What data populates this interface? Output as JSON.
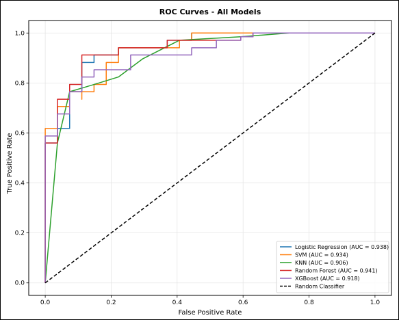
{
  "chart_data": {
    "type": "line",
    "title": "ROC Curves - All Models",
    "xlabel": "False Positive Rate",
    "ylabel": "True Positive Rate",
    "xlim": [
      -0.05,
      1.05
    ],
    "ylim": [
      -0.05,
      1.05
    ],
    "x_ticks": [
      "0.0",
      "0.2",
      "0.4",
      "0.6",
      "0.8",
      "1.0"
    ],
    "y_ticks": [
      "0.0",
      "0.2",
      "0.4",
      "0.6",
      "0.8",
      "1.0"
    ],
    "grid": true,
    "legend_position": "lower-right",
    "series": [
      {
        "name": "Logistic Regression (AUC = 0.938)",
        "color": "#1f77b4",
        "points": [
          [
            0,
            0
          ],
          [
            0,
            0.56
          ],
          [
            0.037,
            0.56
          ],
          [
            0.037,
            0.618
          ],
          [
            0.074,
            0.618
          ],
          [
            0.074,
            0.765
          ],
          [
            0.111,
            0.765
          ],
          [
            0.111,
            0.882
          ],
          [
            0.148,
            0.882
          ],
          [
            0.148,
            0.912
          ],
          [
            0.222,
            0.912
          ],
          [
            0.222,
            0.941
          ],
          [
            0.37,
            0.941
          ],
          [
            0.37,
            0.971
          ],
          [
            0.444,
            0.971
          ],
          [
            0.444,
            1.0
          ],
          [
            1.0,
            1.0
          ]
        ]
      },
      {
        "name": "SVM (AUC = 0.934)",
        "color": "#ff7f0e",
        "points": [
          [
            0,
            0
          ],
          [
            0,
            0.618
          ],
          [
            0.037,
            0.618
          ],
          [
            0.037,
            0.706
          ],
          [
            0.074,
            0.706
          ],
          [
            0.074,
            0.765
          ],
          [
            0.111,
            0.765
          ],
          [
            0.111,
            0.735
          ],
          [
            0.111,
            0.765
          ],
          [
            0.148,
            0.765
          ],
          [
            0.148,
            0.794
          ],
          [
            0.185,
            0.794
          ],
          [
            0.185,
            0.882
          ],
          [
            0.222,
            0.882
          ],
          [
            0.222,
            0.941
          ],
          [
            0.407,
            0.941
          ],
          [
            0.407,
            0.971
          ],
          [
            0.444,
            0.971
          ],
          [
            0.444,
            1.0
          ],
          [
            1.0,
            1.0
          ]
        ]
      },
      {
        "name": "KNN (AUC = 0.906)",
        "color": "#2ca02c",
        "points": [
          [
            0,
            0
          ],
          [
            0.037,
            0.56
          ],
          [
            0.074,
            0.765
          ],
          [
            0.148,
            0.794
          ],
          [
            0.222,
            0.824
          ],
          [
            0.296,
            0.897
          ],
          [
            0.407,
            0.971
          ],
          [
            0.593,
            0.985
          ],
          [
            0.741,
            1.0
          ],
          [
            1.0,
            1.0
          ]
        ]
      },
      {
        "name": "Random Forest (AUC = 0.941)",
        "color": "#d62728",
        "points": [
          [
            0,
            0
          ],
          [
            0,
            0.56
          ],
          [
            0.037,
            0.56
          ],
          [
            0.037,
            0.735
          ],
          [
            0.074,
            0.735
          ],
          [
            0.074,
            0.794
          ],
          [
            0.111,
            0.794
          ],
          [
            0.111,
            0.912
          ],
          [
            0.222,
            0.912
          ],
          [
            0.222,
            0.941
          ],
          [
            0.37,
            0.941
          ],
          [
            0.37,
            0.971
          ],
          [
            0.593,
            0.971
          ],
          [
            0.593,
            0.985
          ],
          [
            0.63,
            0.985
          ],
          [
            0.63,
            1.0
          ],
          [
            1.0,
            1.0
          ]
        ]
      },
      {
        "name": "XGBoost (AUC = 0.918)",
        "color": "#9467bd",
        "points": [
          [
            0,
            0
          ],
          [
            0,
            0.588
          ],
          [
            0.037,
            0.588
          ],
          [
            0.037,
            0.676
          ],
          [
            0.074,
            0.676
          ],
          [
            0.074,
            0.765
          ],
          [
            0.111,
            0.765
          ],
          [
            0.111,
            0.824
          ],
          [
            0.148,
            0.824
          ],
          [
            0.148,
            0.853
          ],
          [
            0.259,
            0.853
          ],
          [
            0.259,
            0.912
          ],
          [
            0.444,
            0.912
          ],
          [
            0.444,
            0.941
          ],
          [
            0.519,
            0.941
          ],
          [
            0.519,
            0.971
          ],
          [
            0.593,
            0.971
          ],
          [
            0.593,
            0.985
          ],
          [
            0.63,
            0.985
          ],
          [
            0.63,
            1.0
          ],
          [
            1.0,
            1.0
          ]
        ]
      },
      {
        "name": "Random Classifier",
        "color": "#000000",
        "dashed": true,
        "points": [
          [
            0,
            0
          ],
          [
            1,
            1
          ]
        ]
      }
    ]
  }
}
